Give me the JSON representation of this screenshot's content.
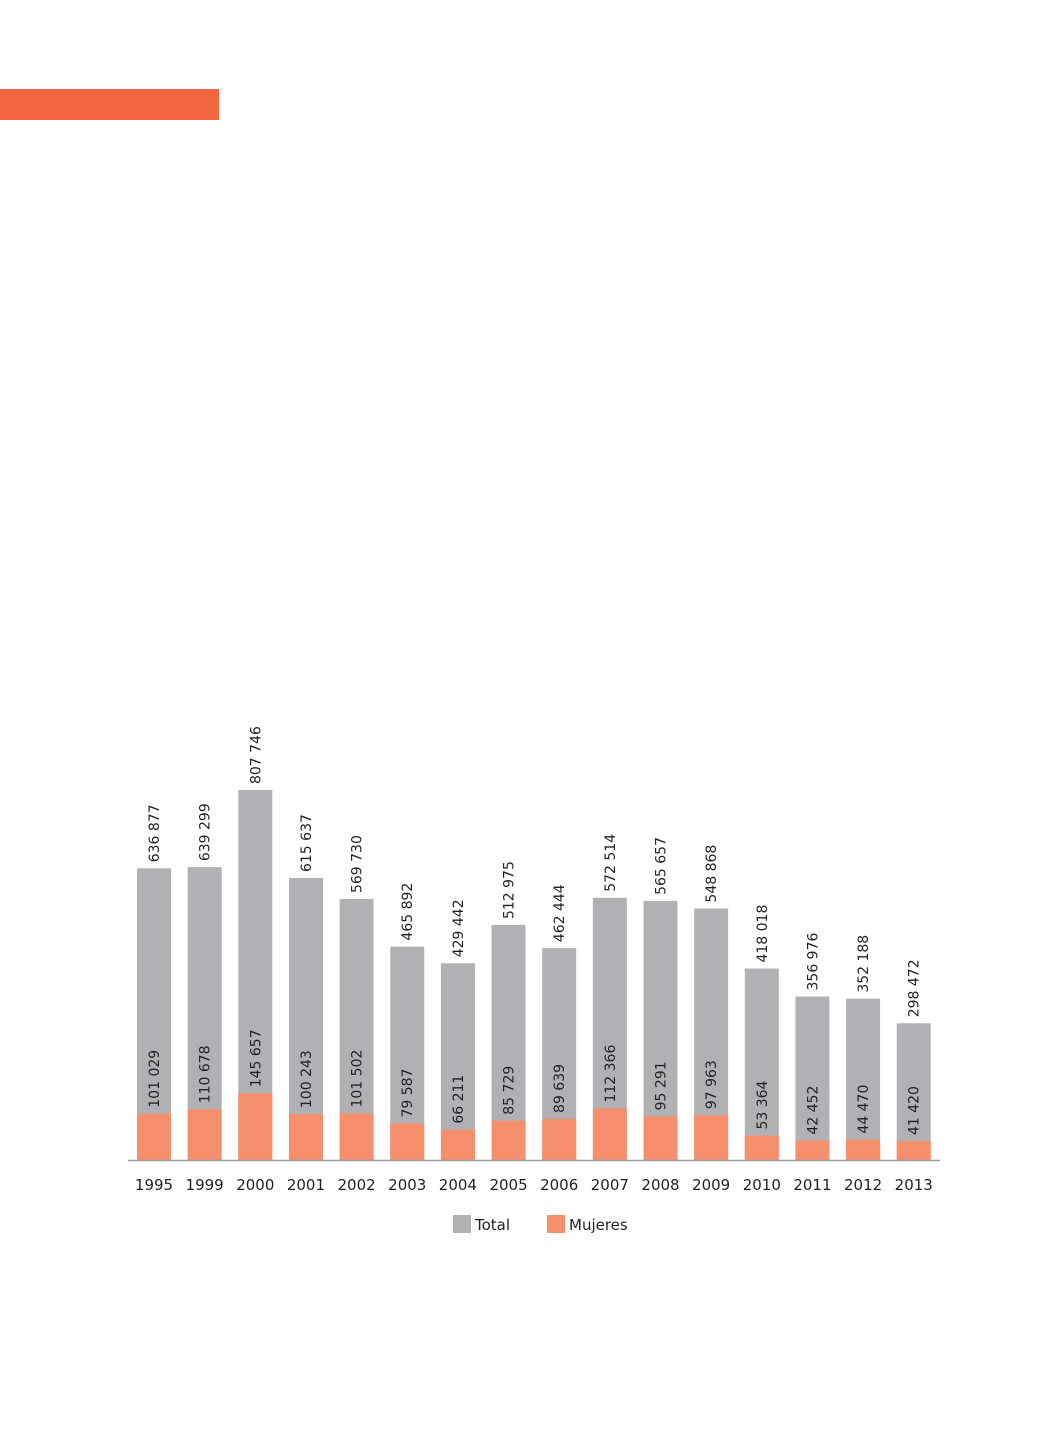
{
  "colors": {
    "accent": "#f26640",
    "total": "#b1b0b5",
    "mujeres": "#f58f6c",
    "axis": "#9a9a9a"
  },
  "chart_data": {
    "type": "bar",
    "categories": [
      "1995",
      "1999",
      "2000",
      "2001",
      "2002",
      "2003",
      "2004",
      "2005",
      "2006",
      "2007",
      "2008",
      "2009",
      "2010",
      "2011",
      "2012",
      "2013"
    ],
    "series": [
      {
        "name": "Total",
        "values": [
          636877,
          639299,
          807746,
          615637,
          569730,
          465892,
          429442,
          512975,
          462444,
          572514,
          565657,
          548868,
          418018,
          356976,
          352188,
          298472
        ],
        "labels": [
          "636 877",
          "639 299",
          "807 746",
          "615 637",
          "569 730",
          "465 892",
          "429 442",
          "512 975",
          "462 444",
          "572 514",
          "565 657",
          "548 868",
          "418 018",
          "356 976",
          "352 188",
          "298 472"
        ]
      },
      {
        "name": "Mujeres",
        "values": [
          101029,
          110678,
          145657,
          100243,
          101502,
          79587,
          66211,
          85729,
          89639,
          112366,
          95291,
          97963,
          53364,
          42452,
          44470,
          41420
        ],
        "labels": [
          "101 029",
          "110 678",
          "145 657",
          "100 243",
          "101 502",
          "79 587",
          "66 211",
          "85 729",
          "89 639",
          "112 366",
          "95 291",
          "97 963",
          "53 364",
          "42 452",
          "44 470",
          "41 420"
        ]
      }
    ],
    "ylim": [
      0,
      807746
    ],
    "grid": false,
    "legend": "bottom-center"
  }
}
